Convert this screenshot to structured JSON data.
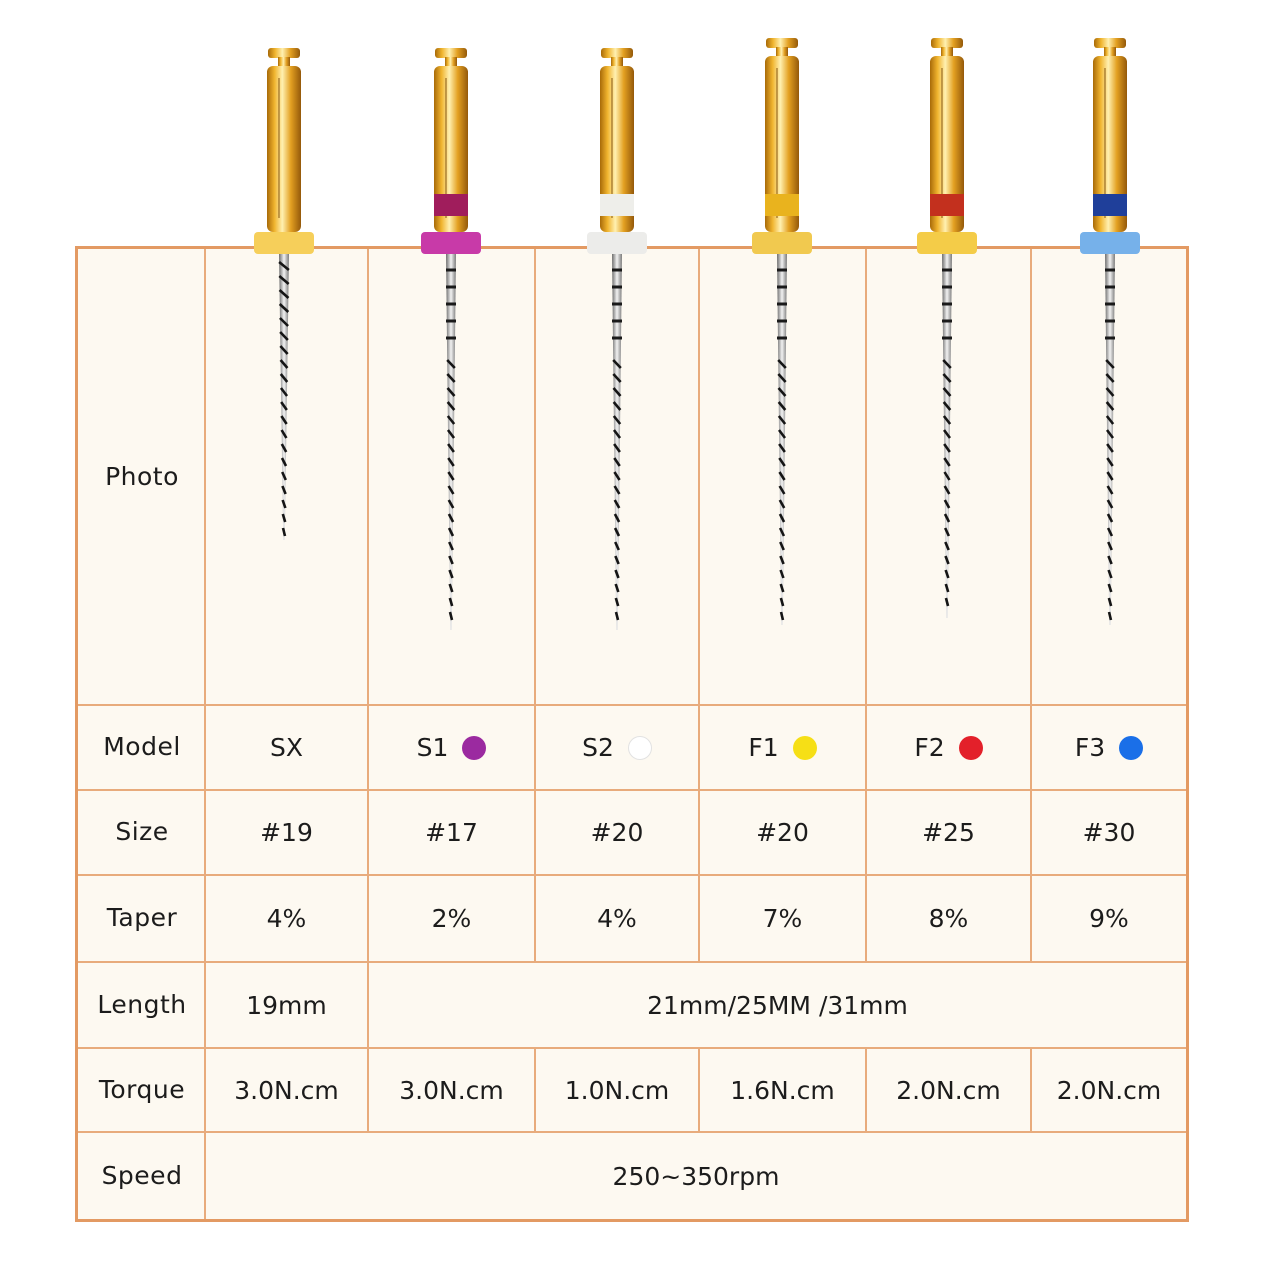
{
  "rows": {
    "photo": "Photo",
    "model": "Model",
    "size": "Size",
    "taper": "Taper",
    "length": "Length",
    "torque": "Torque",
    "speed": "Speed"
  },
  "files": [
    {
      "model": "SX",
      "size": "#19",
      "taper": "4%",
      "torque": "3.0N.cm",
      "dot_color": "",
      "band_color": "",
      "stopper_color": "#f6cf5a"
    },
    {
      "model": "S1",
      "size": "#17",
      "taper": "2%",
      "torque": "3.0N.cm",
      "dot_color": "#9b2aa0",
      "band_color": "#a01d5c",
      "stopper_color": "#c83aa8"
    },
    {
      "model": "S2",
      "size": "#20",
      "taper": "4%",
      "torque": "1.0N.cm",
      "dot_color": "#ffffff",
      "band_color": "#eeeeea",
      "stopper_color": "#ececea"
    },
    {
      "model": "F1",
      "size": "#20",
      "taper": "7%",
      "torque": "1.6N.cm",
      "dot_color": "#f6df16",
      "band_color": "#e9b31e",
      "stopper_color": "#f1c94f"
    },
    {
      "model": "F2",
      "size": "#25",
      "taper": "8%",
      "torque": "2.0N.cm",
      "dot_color": "#e3202a",
      "band_color": "#c3301e",
      "stopper_color": "#f4cc48"
    },
    {
      "model": "F3",
      "size": "#30",
      "taper": "9%",
      "torque": "2.0N.cm",
      "dot_color": "#1a6fe8",
      "band_color": "#1f3f9a",
      "stopper_color": "#76b1ea"
    }
  ],
  "length": {
    "sx": "19mm",
    "others": "21mm/25MM /31mm"
  },
  "speed": "250~350rpm"
}
